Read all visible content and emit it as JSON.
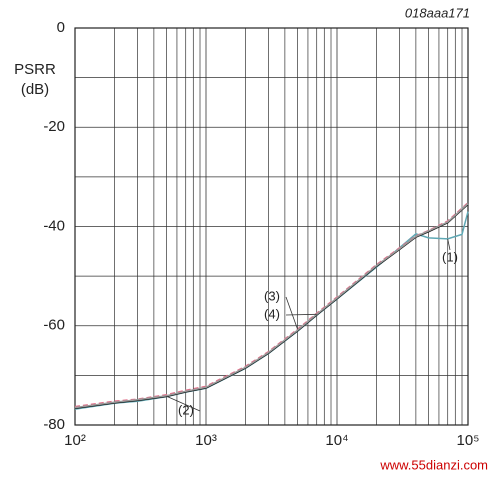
{
  "chart_data": {
    "type": "line",
    "figure_id": "018aaa171",
    "y_label_lines": [
      "PSRR",
      "(dB)"
    ],
    "watermark": "www.55dianzi.com",
    "xlog": true,
    "log_minor_grid": true,
    "grid": true,
    "xlim": [
      100,
      100000
    ],
    "xticks": [
      {
        "value": 100,
        "label": "10²"
      },
      {
        "value": 1000,
        "label": "10³"
      },
      {
        "value": 10000,
        "label": "10⁴"
      },
      {
        "value": 100000,
        "label": "10⁵"
      }
    ],
    "ylim": [
      -80,
      0
    ],
    "yticks": [
      -80,
      -60,
      -40,
      -20,
      0
    ],
    "minor_yticks": [
      -70,
      -50,
      -30,
      -10
    ],
    "x": [
      100,
      200,
      300,
      500,
      700,
      1000,
      2000,
      3000,
      5000,
      7000,
      10000,
      20000,
      30000,
      40000,
      50000,
      70000,
      90000,
      100000
    ],
    "series": [
      {
        "name": "(1)",
        "color": "#5fa8b4",
        "dash": false,
        "values": [
          -76.8,
          -75.6,
          -75.2,
          -74.3,
          -73.4,
          -72.6,
          -68.6,
          -65.6,
          -61.1,
          -57.9,
          -54.6,
          -48.2,
          -44.3,
          -41.5,
          -42.3,
          -42.5,
          -41.6,
          -37
        ]
      },
      {
        "name": "(2)",
        "color": "#111111",
        "dash": false,
        "values": [
          -76.6,
          -75.5,
          -75,
          -74.2,
          -73.3,
          -72.5,
          -68.5,
          -65.5,
          -61,
          -57.8,
          -54.5,
          -48,
          -44.6,
          -42.1,
          -41,
          -39.2,
          -36.6,
          -35.5
        ]
      },
      {
        "name": "(3)",
        "color": "#e0708a",
        "dash": true,
        "values": [
          -76.3,
          -75.2,
          -74.8,
          -73.9,
          -73,
          -72.2,
          -68.2,
          -65.2,
          -60.7,
          -57.5,
          -54.2,
          -47.7,
          -44.3,
          -41.9,
          -40.8,
          -38.9,
          -36.3,
          -35.2
        ]
      },
      {
        "name": "(4)",
        "color": "#9a9a9a",
        "dash": false,
        "values": [
          -76.5,
          -75.4,
          -74.9,
          -74.1,
          -73.2,
          -72.4,
          -68.4,
          -65.4,
          -60.9,
          -57.7,
          -54.4,
          -47.9,
          -44.5,
          -42,
          -40.9,
          -39.1,
          -36.5,
          -35.4
        ]
      }
    ]
  }
}
